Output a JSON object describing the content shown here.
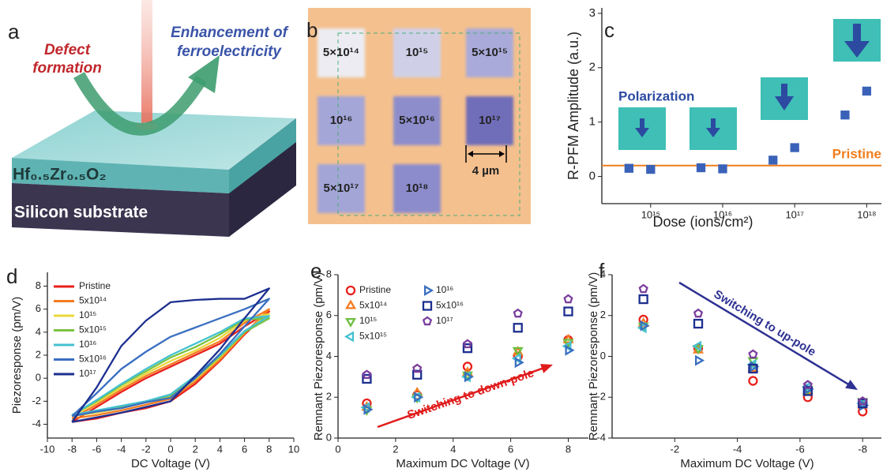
{
  "panel_a": {
    "label": "a",
    "defect": [
      "Defect",
      "formation"
    ],
    "enhancement": [
      "Enhancement of",
      "ferroelectricity"
    ],
    "film": "Hf₀.₅Zr₀.₅O₂",
    "substrate": "Silicon substrate"
  },
  "panel_b": {
    "label": "b",
    "doses": [
      "5×10¹⁴",
      "10¹⁵",
      "5×10¹⁵",
      "10¹⁶",
      "5×10¹⁶",
      "10¹⁷",
      "5×10¹⁷",
      "10¹⁸"
    ],
    "scale_bar": "4 µm"
  },
  "chart_data": [
    {
      "type": "scatter",
      "panel": "c",
      "xlabel": "Dose (ions/cm²)",
      "ylabel": "R-PFM Amplitude (a.u.)",
      "xscale": "log",
      "xlim": [
        210000000000000.0,
        1.6e+18
      ],
      "ylim": [
        -0.5,
        3.1
      ],
      "xticks": [
        {
          "value": 1000000000000000.0,
          "label": "10¹⁵"
        },
        {
          "value": 1e+16,
          "label": "10¹⁶"
        },
        {
          "value": 1e+17,
          "label": "10¹⁷"
        },
        {
          "value": 1e+18,
          "label": "10¹⁸"
        }
      ],
      "yticks": [
        0,
        1,
        2,
        3
      ],
      "x": [
        500000000000000.0,
        1000000000000000.0,
        5000000000000000.0,
        1e+16,
        5e+16,
        1e+17,
        5e+17,
        1e+18
      ],
      "series": [
        {
          "color": "#3a62b8",
          "marker": "square",
          "filled": true,
          "values": [
            0.15,
            0.13,
            0.16,
            0.14,
            0.3,
            0.53,
            1.13,
            1.57
          ]
        }
      ],
      "reference": {
        "name": "Pristine",
        "value": 0.2,
        "color": "#f07d1c"
      },
      "annotation": "Polarization"
    },
    {
      "type": "line",
      "panel": "d",
      "xlabel": "DC Voltage (V)",
      "ylabel": "Piezoresponse (pm/V)",
      "xlim": [
        -10,
        10
      ],
      "ylim": [
        -5.2,
        9.2
      ],
      "xticks": [
        -10,
        -8,
        -6,
        -4,
        -2,
        0,
        2,
        4,
        6,
        8,
        10
      ],
      "yticks": [
        -4,
        -2,
        0,
        2,
        4,
        6,
        8
      ],
      "legend": "upper left",
      "legend_columns": 1,
      "x": [
        -8,
        -6,
        -4,
        -2,
        0,
        2,
        4,
        6,
        8,
        6,
        4,
        2,
        0,
        -2,
        -4,
        -6,
        -8
      ],
      "series": [
        {
          "name": "Pristine",
          "color": "#e8211d",
          "values": [
            -3.8,
            -3.5,
            -3,
            -2.6,
            -2,
            -0.5,
            1.5,
            3.8,
            5.8,
            4.5,
            3,
            2,
            1,
            0,
            -1.2,
            -2.5,
            -3.8
          ]
        },
        {
          "name": "5x10¹⁴",
          "color": "#f47b20",
          "values": [
            -3.5,
            -3.2,
            -2.8,
            -2.3,
            -1.8,
            -0.3,
            1.6,
            3.9,
            6.0,
            4.8,
            3.2,
            2.2,
            1.2,
            0.2,
            -1,
            -2.3,
            -3.5
          ]
        },
        {
          "name": "10¹⁵",
          "color": "#e9d83a",
          "values": [
            -3.3,
            -3,
            -2.6,
            -2.1,
            -1.6,
            -0.1,
            1.8,
            4,
            5.6,
            5,
            3.5,
            2.4,
            1.5,
            0.4,
            -0.8,
            -2.1,
            -3.3
          ]
        },
        {
          "name": "5x10¹⁵",
          "color": "#7cc242",
          "values": [
            -3.2,
            -2.9,
            -2.5,
            -2,
            -1.5,
            0,
            1.9,
            4,
            5.2,
            5.1,
            3.8,
            2.7,
            1.8,
            0.6,
            -0.6,
            -2,
            -3.2
          ]
        },
        {
          "name": "10¹⁶",
          "color": "#45c1d1",
          "values": [
            -3.2,
            -2.8,
            -2.4,
            -2,
            -1.4,
            0.2,
            2,
            4.1,
            5.4,
            5.2,
            4,
            3,
            2,
            0.8,
            -0.5,
            -1.9,
            -3.2
          ]
        },
        {
          "name": "5x10¹⁶",
          "color": "#3a6fc0",
          "values": [
            -3.3,
            -2.9,
            -2.6,
            -2.1,
            -1.7,
            0,
            2.1,
            4.5,
            6.9,
            6,
            5.2,
            4.4,
            3.6,
            2.3,
            0.8,
            -1.3,
            -3.3
          ]
        },
        {
          "name": "10¹⁷",
          "color": "#1d2f8f",
          "values": [
            -3.8,
            -3.4,
            -3,
            -2.5,
            -2,
            0.2,
            2.5,
            5.2,
            7.8,
            6.9,
            6.9,
            6.8,
            6.6,
            5,
            2.8,
            -0.8,
            -3.8
          ]
        }
      ]
    },
    {
      "type": "scatter",
      "panel": "e",
      "xlabel": "Maximum DC Voltage (V)",
      "ylabel": "Remnant Piezoresponse (pm/V)",
      "xlim": [
        0,
        8.7
      ],
      "ylim": [
        0,
        8
      ],
      "xticks": [
        0,
        2,
        4,
        6,
        8
      ],
      "yticks": [
        0,
        2,
        4,
        6,
        8
      ],
      "legend": "upper left",
      "legend_columns": 2,
      "x": [
        1,
        2.75,
        4.5,
        6.25,
        8
      ],
      "series": [
        {
          "name": "Pristine",
          "color": "#e8211d",
          "marker": "circle",
          "values": [
            1.7,
            2.1,
            3.5,
            4.0,
            4.8
          ]
        },
        {
          "name": "5x10¹⁴",
          "color": "#f47b20",
          "marker": "triangle-up",
          "values": [
            1.5,
            2.2,
            3.2,
            4.2,
            4.8
          ]
        },
        {
          "name": "10¹⁵",
          "color": "#6cbf3f",
          "marker": "triangle-down",
          "values": [
            1.4,
            2.0,
            3.1,
            4.3,
            4.7
          ]
        },
        {
          "name": "5x10¹⁵",
          "color": "#45c1d1",
          "marker": "triangle-left",
          "values": [
            1.5,
            2.0,
            3.0,
            3.9,
            4.5
          ]
        },
        {
          "name": "10¹⁶",
          "color": "#3a6fc0",
          "marker": "triangle-right",
          "values": [
            1.4,
            2.0,
            3.0,
            3.7,
            4.3
          ]
        },
        {
          "name": "5x10¹⁶",
          "color": "#1d2f8f",
          "marker": "square",
          "values": [
            2.9,
            3.1,
            4.4,
            5.4,
            6.2
          ]
        },
        {
          "name": "10¹⁷",
          "color": "#7b3f9e",
          "marker": "pentagon",
          "values": [
            3.1,
            3.4,
            4.6,
            6.1,
            6.8
          ]
        }
      ],
      "annotation": "Switching to down-pole"
    },
    {
      "type": "scatter",
      "panel": "f",
      "xlabel": "Maximum DC Voltage (V)",
      "ylabel": "Remnant Piezoresponse (pm/V)",
      "xlim": [
        0,
        -8.6
      ],
      "ylim": [
        -4,
        4
      ],
      "xticks": [
        -2,
        -4,
        -6,
        -8
      ],
      "yticks": [
        -4,
        -2,
        0,
        2,
        4
      ],
      "x": [
        -1,
        -2.75,
        -4.5,
        -6.25,
        -8
      ],
      "series": [
        {
          "color": "#e8211d",
          "marker": "circle",
          "values": [
            1.8,
            0.4,
            -1.2,
            -2.0,
            -2.7
          ]
        },
        {
          "color": "#f47b20",
          "marker": "triangle-up",
          "values": [
            1.6,
            0.3,
            -0.6,
            -1.7,
            -2.4
          ]
        },
        {
          "color": "#6cbf3f",
          "marker": "triangle-down",
          "values": [
            1.5,
            0.4,
            -0.2,
            -1.6,
            -2.2
          ]
        },
        {
          "color": "#45c1d1",
          "marker": "triangle-left",
          "values": [
            1.4,
            0.5,
            -0.4,
            -1.5,
            -2.3
          ]
        },
        {
          "color": "#3a6fc0",
          "marker": "triangle-right",
          "values": [
            1.5,
            -0.2,
            -0.5,
            -1.6,
            -2.4
          ]
        },
        {
          "color": "#1d2f8f",
          "marker": "square",
          "values": [
            2.8,
            1.6,
            -0.6,
            -1.7,
            -2.3
          ]
        },
        {
          "color": "#7b3f9e",
          "marker": "pentagon",
          "values": [
            3.3,
            2.1,
            0.1,
            -1.4,
            -2.2
          ]
        }
      ],
      "annotation": "Switching to up-pole"
    }
  ]
}
